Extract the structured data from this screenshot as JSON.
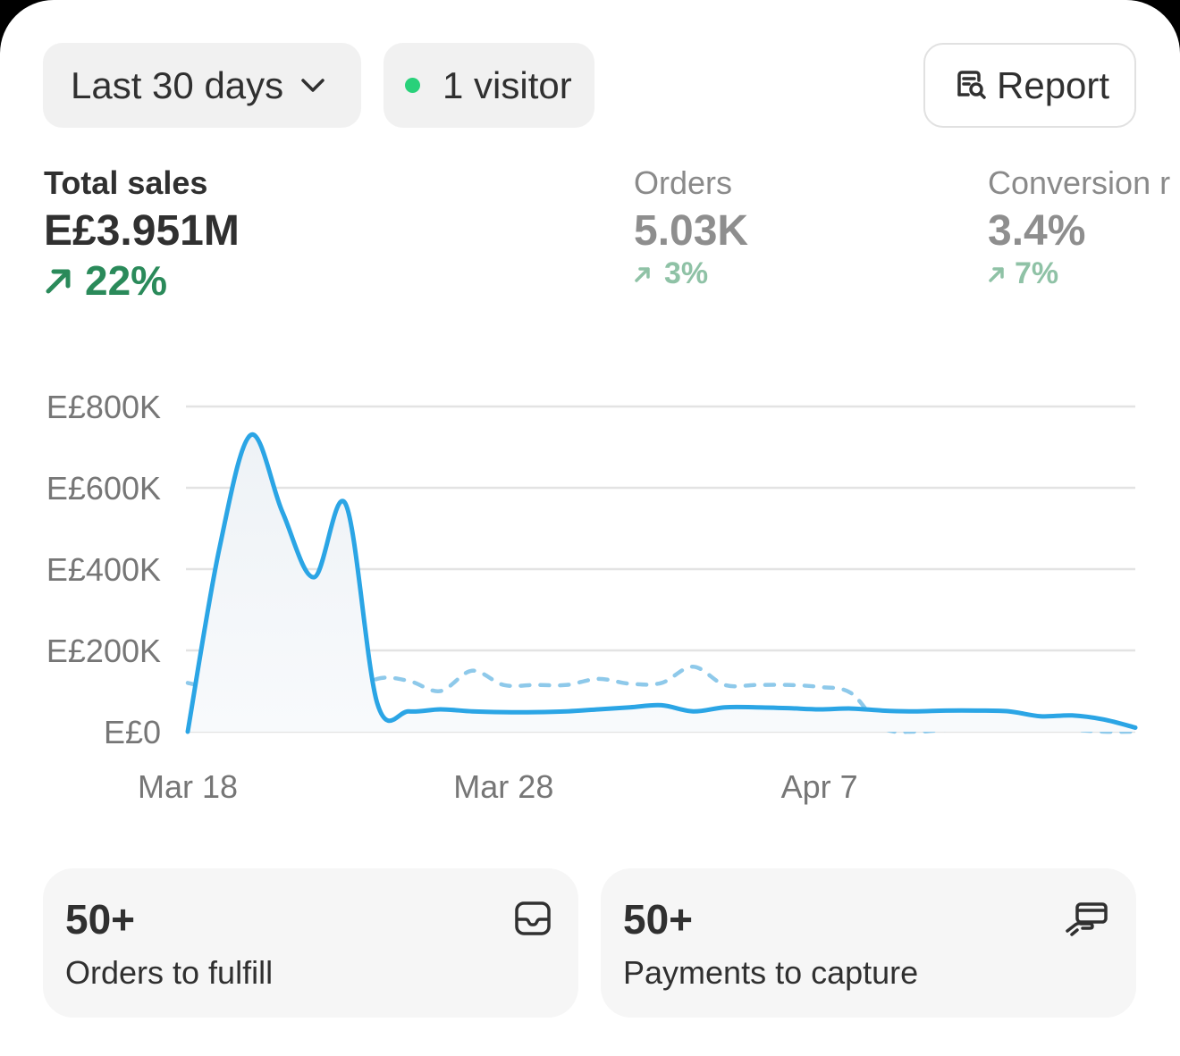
{
  "toolbar": {
    "date_range": "Last 30 days",
    "visitors": "1 visitor",
    "report_label": "Report"
  },
  "metrics": [
    {
      "label": "Total sales",
      "value": "E£3.951M",
      "change": "22%"
    },
    {
      "label": "Orders",
      "value": "5.03K",
      "change": "3%"
    },
    {
      "label": "Conversion r",
      "value": "3.4%",
      "change": "7%"
    }
  ],
  "colors": {
    "current": "#2ba5e5",
    "previous": "#8ec9ea",
    "positive": "#2a8a5a",
    "live_dot": "#29d17a"
  },
  "chart_data": {
    "type": "line",
    "title": "",
    "xlabel": "",
    "ylabel": "",
    "x_tick_labels": [
      "Mar 18",
      "Mar 28",
      "Apr 7"
    ],
    "y_tick_labels": [
      "E£0",
      "E£200K",
      "E£400K",
      "E£600K",
      "E£800K"
    ],
    "ylim": [
      0,
      800000
    ],
    "grid": true,
    "series": [
      {
        "style": "solid",
        "values": [
          0,
          450000,
          730000,
          540000,
          380000,
          560000,
          70000,
          50000,
          55000,
          50000,
          48000,
          48000,
          50000,
          55000,
          60000,
          65000,
          50000,
          60000,
          60000,
          58000,
          55000,
          57000,
          52000,
          50000,
          52000,
          52000,
          50000,
          38000,
          40000,
          30000,
          10000
        ]
      },
      {
        "style": "dashed",
        "values": [
          120000,
          105000,
          110000,
          110000,
          90000,
          80000,
          130000,
          125000,
          100000,
          150000,
          115000,
          115000,
          115000,
          130000,
          118000,
          120000,
          160000,
          115000,
          115000,
          115000,
          110000,
          95000,
          10000,
          0,
          5000,
          10000,
          10000,
          10000,
          5000,
          0,
          0
        ]
      }
    ]
  },
  "tiles": [
    {
      "count": "50+",
      "label": "Orders to fulfill"
    },
    {
      "count": "50+",
      "label": "Payments to capture"
    }
  ]
}
